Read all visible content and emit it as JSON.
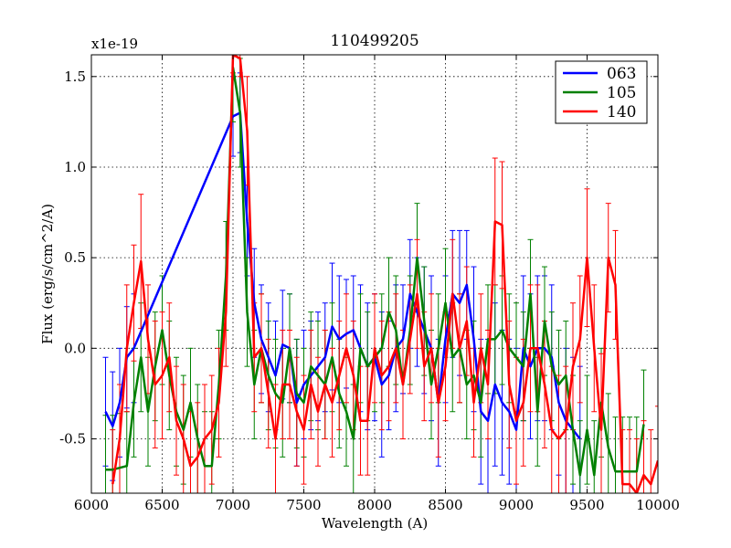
{
  "chart_data": {
    "type": "line",
    "title": "110499205",
    "xlabel": "Wavelength (A)",
    "ylabel": "Flux (erg/s/cm^2/A)",
    "offset_label": "x1e-19",
    "xlim": [
      6000,
      10000
    ],
    "ylim": [
      -0.8,
      1.62
    ],
    "xticks": [
      6000,
      6500,
      7000,
      7500,
      8000,
      8500,
      9000,
      9500,
      10000
    ],
    "yticks": [
      -0.5,
      0.0,
      0.5,
      1.0,
      1.5
    ],
    "xtick_labels": [
      "6000",
      "6500",
      "7000",
      "7500",
      "8000",
      "8500",
      "9000",
      "9500",
      "10000"
    ],
    "ytick_labels": [
      "-0.5",
      "0.0",
      "0.5",
      "1.0",
      "1.5"
    ],
    "grid": true,
    "legend_position": "top-right",
    "series": [
      {
        "name": "063",
        "color": "#0000ff",
        "x": [
          6100,
          6150,
          6200,
          6250,
          6300,
          7000,
          7050,
          7100,
          7150,
          7200,
          7250,
          7300,
          7350,
          7400,
          7450,
          7500,
          7550,
          7600,
          7650,
          7700,
          7750,
          7800,
          7850,
          7900,
          7950,
          8000,
          8050,
          8100,
          8150,
          8200,
          8250,
          8300,
          8350,
          8400,
          8450,
          8500,
          8550,
          8600,
          8650,
          8700,
          8750,
          8800,
          8850,
          8900,
          8950,
          9000,
          9050,
          9100,
          9150,
          9200,
          9250,
          9300,
          9350,
          9400,
          9450
        ],
        "y": [
          -0.35,
          -0.43,
          -0.3,
          -0.05,
          0.0,
          1.28,
          1.3,
          0.7,
          0.25,
          0.05,
          -0.05,
          -0.15,
          0.02,
          0.0,
          -0.3,
          -0.2,
          -0.15,
          -0.1,
          -0.05,
          0.12,
          0.05,
          0.08,
          0.1,
          0.0,
          -0.1,
          -0.05,
          -0.2,
          -0.15,
          0.0,
          0.05,
          0.3,
          0.2,
          0.1,
          0.0,
          -0.3,
          0.05,
          0.3,
          0.25,
          0.35,
          0.05,
          -0.35,
          -0.4,
          -0.2,
          -0.3,
          -0.35,
          -0.45,
          0.0,
          -0.1,
          0.0,
          0.0,
          -0.05,
          -0.3,
          -0.4,
          -0.45,
          -0.5
        ],
        "err": [
          0.3,
          0.3,
          0.3,
          0.28,
          0.3,
          0.22,
          0.22,
          0.3,
          0.3,
          0.3,
          0.3,
          0.3,
          0.3,
          0.3,
          0.35,
          0.3,
          0.3,
          0.3,
          0.3,
          0.35,
          0.35,
          0.3,
          0.3,
          0.35,
          0.35,
          0.35,
          0.4,
          0.3,
          0.35,
          0.3,
          0.3,
          0.3,
          0.35,
          0.4,
          0.35,
          0.35,
          0.35,
          0.4,
          0.3,
          0.4,
          0.4,
          0.45,
          0.45,
          0.4,
          0.4,
          0.45,
          0.4,
          0.4,
          0.4,
          0.4,
          0.4,
          0.4,
          0.4,
          0.4,
          0.4
        ]
      },
      {
        "name": "105",
        "color": "#008000",
        "x": [
          6100,
          6150,
          6200,
          6250,
          6300,
          6350,
          6400,
          6450,
          6500,
          6550,
          6600,
          6650,
          6700,
          6750,
          6800,
          6850,
          6900,
          6950,
          7000,
          7050,
          7100,
          7150,
          7200,
          7250,
          7300,
          7350,
          7400,
          7450,
          7500,
          7550,
          7600,
          7650,
          7700,
          7750,
          7800,
          7850,
          7900,
          7950,
          8000,
          8050,
          8100,
          8150,
          8200,
          8250,
          8300,
          8350,
          8400,
          8450,
          8500,
          8550,
          8600,
          8650,
          8700,
          8750,
          8800,
          8850,
          8900,
          8950,
          9000,
          9050,
          9100,
          9150,
          9200,
          9250,
          9300,
          9350,
          9400,
          9450,
          9500,
          9550,
          9600,
          9650,
          9700,
          9750,
          9800,
          9850,
          9900
        ],
        "y": [
          -0.67,
          -0.67,
          -0.66,
          -0.65,
          -0.3,
          -0.05,
          -0.35,
          -0.1,
          0.1,
          -0.15,
          -0.35,
          -0.45,
          -0.3,
          -0.5,
          -0.65,
          -0.65,
          -0.2,
          0.4,
          1.55,
          1.3,
          0.2,
          -0.2,
          0.0,
          -0.15,
          -0.25,
          -0.3,
          0.0,
          -0.25,
          -0.3,
          -0.1,
          -0.15,
          -0.2,
          -0.05,
          -0.25,
          -0.35,
          -0.5,
          0.0,
          -0.1,
          -0.05,
          0.0,
          0.2,
          0.1,
          -0.2,
          0.1,
          0.5,
          0.15,
          -0.2,
          0.0,
          0.25,
          -0.05,
          0.0,
          -0.2,
          -0.15,
          -0.3,
          0.05,
          0.05,
          0.1,
          0.0,
          -0.05,
          -0.1,
          0.3,
          -0.35,
          0.15,
          -0.1,
          -0.2,
          -0.15,
          -0.45,
          -0.7,
          -0.45,
          -0.7,
          -0.3,
          -0.55,
          -0.68,
          -0.68,
          -0.68,
          -0.68,
          -0.42
        ]
      },
      {
        "name": "140",
        "color": "#ff0000",
        "x": [
          6150,
          6200,
          6250,
          6300,
          6350,
          6400,
          6450,
          6500,
          6550,
          6600,
          6650,
          6700,
          6750,
          6800,
          6850,
          6900,
          6950,
          7000,
          7050,
          7100,
          7150,
          7200,
          7250,
          7300,
          7350,
          7400,
          7450,
          7500,
          7550,
          7600,
          7650,
          7700,
          7750,
          7800,
          7850,
          7900,
          7950,
          8000,
          8050,
          8100,
          8150,
          8200,
          8250,
          8300,
          8350,
          8400,
          8450,
          8500,
          8550,
          8600,
          8650,
          8700,
          8750,
          8800,
          8850,
          8900,
          8950,
          9000,
          9050,
          9100,
          9150,
          9200,
          9250,
          9300,
          9350,
          9400,
          9450,
          9500,
          9550,
          9600,
          9650,
          9700,
          9750,
          9800,
          9850,
          9900,
          9950,
          10000
        ],
        "y": [
          -0.75,
          -0.5,
          0.0,
          0.25,
          0.48,
          0.05,
          -0.2,
          -0.15,
          -0.05,
          -0.4,
          -0.5,
          -0.65,
          -0.6,
          -0.5,
          -0.45,
          -0.3,
          0.2,
          1.62,
          1.6,
          1.2,
          -0.05,
          0.0,
          -0.25,
          -0.5,
          -0.2,
          -0.2,
          -0.35,
          -0.45,
          -0.2,
          -0.35,
          -0.2,
          -0.3,
          -0.15,
          0.0,
          -0.15,
          -0.4,
          -0.4,
          0.0,
          -0.15,
          -0.1,
          0.0,
          -0.2,
          0.05,
          0.3,
          -0.1,
          0.0,
          -0.3,
          -0.1,
          0.3,
          0.0,
          0.15,
          -0.3,
          0.0,
          -0.2,
          0.7,
          0.68,
          -0.2,
          -0.4,
          -0.3,
          0.0,
          0.0,
          -0.2,
          -0.45,
          -0.5,
          -0.45,
          -0.1,
          0.05,
          0.5,
          0.0,
          -0.45,
          0.5,
          0.35,
          -0.75,
          -0.75,
          -0.8,
          -0.7,
          -0.75,
          -0.62
        ],
        "err": [
          0.3,
          0.3,
          0.35,
          0.32,
          0.37,
          0.3,
          0.35,
          0.35,
          0.3,
          0.3,
          0.3,
          0.3,
          0.3,
          0.3,
          0.3,
          0.3,
          0.3,
          0.1,
          0.1,
          0.3,
          0.3,
          0.3,
          0.3,
          0.3,
          0.3,
          0.3,
          0.3,
          0.3,
          0.3,
          0.3,
          0.3,
          0.3,
          0.3,
          0.3,
          0.3,
          0.3,
          0.3,
          0.3,
          0.3,
          0.3,
          0.3,
          0.3,
          0.3,
          0.3,
          0.3,
          0.3,
          0.3,
          0.3,
          0.3,
          0.3,
          0.3,
          0.3,
          0.3,
          0.3,
          0.35,
          0.35,
          0.35,
          0.35,
          0.35,
          0.35,
          0.35,
          0.35,
          0.35,
          0.35,
          0.35,
          0.35,
          0.35,
          0.38,
          0.35,
          0.42,
          0.3,
          0.3,
          0.3,
          0.3,
          0.3,
          0.3,
          0.3,
          0.3
        ]
      }
    ]
  }
}
